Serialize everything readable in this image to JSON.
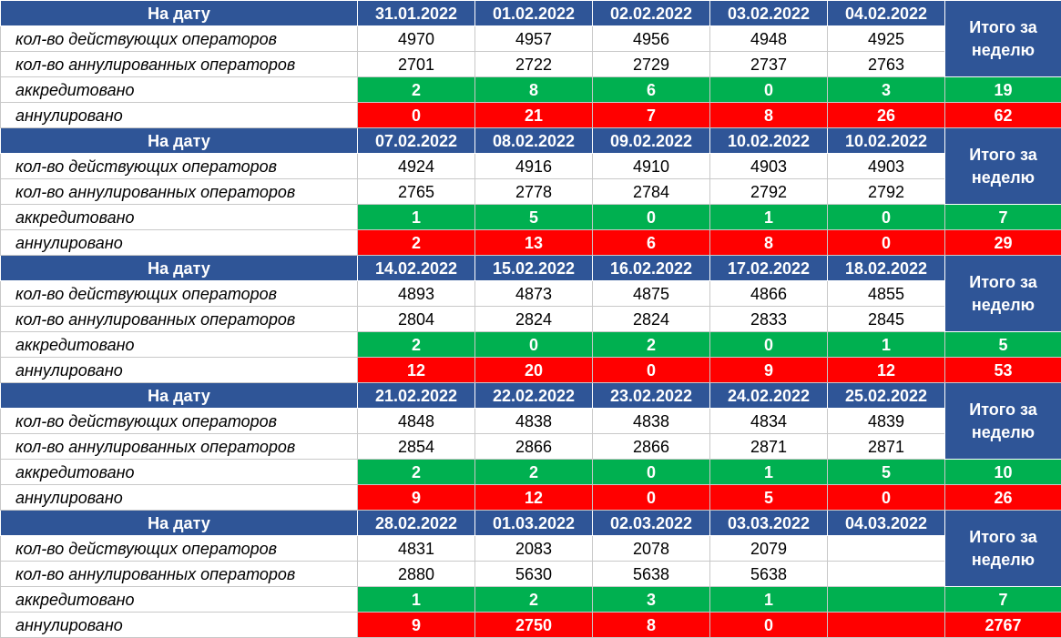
{
  "labels": {
    "date_header": "На дату",
    "active": "кол-во действующих операторов",
    "annulled_count": "кол-во аннулированных операторов",
    "accredited": "аккредитовано",
    "annulled": "аннулировано",
    "week_total": "Итого за неделю"
  },
  "weeks": [
    {
      "dates": [
        "31.01.2022",
        "01.02.2022",
        "02.02.2022",
        "03.02.2022",
        "04.02.2022"
      ],
      "active": [
        "4970",
        "4957",
        "4956",
        "4948",
        "4925"
      ],
      "annulled_count": [
        "2701",
        "2722",
        "2729",
        "2737",
        "2763"
      ],
      "accredited": [
        "2",
        "8",
        "6",
        "0",
        "3"
      ],
      "accredited_total": "19",
      "annulled": [
        "0",
        "21",
        "7",
        "8",
        "26"
      ],
      "annulled_total": "62"
    },
    {
      "dates": [
        "07.02.2022",
        "08.02.2022",
        "09.02.2022",
        "10.02.2022",
        "10.02.2022"
      ],
      "active": [
        "4924",
        "4916",
        "4910",
        "4903",
        "4903"
      ],
      "annulled_count": [
        "2765",
        "2778",
        "2784",
        "2792",
        "2792"
      ],
      "accredited": [
        "1",
        "5",
        "0",
        "1",
        "0"
      ],
      "accredited_total": "7",
      "annulled": [
        "2",
        "13",
        "6",
        "8",
        "0"
      ],
      "annulled_total": "29"
    },
    {
      "dates": [
        "14.02.2022",
        "15.02.2022",
        "16.02.2022",
        "17.02.2022",
        "18.02.2022"
      ],
      "active": [
        "4893",
        "4873",
        "4875",
        "4866",
        "4855"
      ],
      "annulled_count": [
        "2804",
        "2824",
        "2824",
        "2833",
        "2845"
      ],
      "accredited": [
        "2",
        "0",
        "2",
        "0",
        "1"
      ],
      "accredited_total": "5",
      "annulled": [
        "12",
        "20",
        "0",
        "9",
        "12"
      ],
      "annulled_total": "53"
    },
    {
      "dates": [
        "21.02.2022",
        "22.02.2022",
        "23.02.2022",
        "24.02.2022",
        "25.02.2022"
      ],
      "active": [
        "4848",
        "4838",
        "4838",
        "4834",
        "4839"
      ],
      "annulled_count": [
        "2854",
        "2866",
        "2866",
        "2871",
        "2871"
      ],
      "accredited": [
        "2",
        "2",
        "0",
        "1",
        "5"
      ],
      "accredited_total": "10",
      "annulled": [
        "9",
        "12",
        "0",
        "5",
        "0"
      ],
      "annulled_total": "26"
    },
    {
      "dates": [
        "28.02.2022",
        "01.03.2022",
        "02.03.2022",
        "03.03.2022",
        "04.03.2022"
      ],
      "active": [
        "4831",
        "2083",
        "2078",
        "2079",
        ""
      ],
      "annulled_count": [
        "2880",
        "5630",
        "5638",
        "5638",
        ""
      ],
      "accredited": [
        "1",
        "2",
        "3",
        "1",
        ""
      ],
      "accredited_total": "7",
      "annulled": [
        "9",
        "2750",
        "8",
        "0",
        ""
      ],
      "annulled_total": "2767"
    }
  ],
  "colors": {
    "header_blue": "#2f5597",
    "accredited_green": "#00b050",
    "annulled_red": "#ff0000"
  }
}
